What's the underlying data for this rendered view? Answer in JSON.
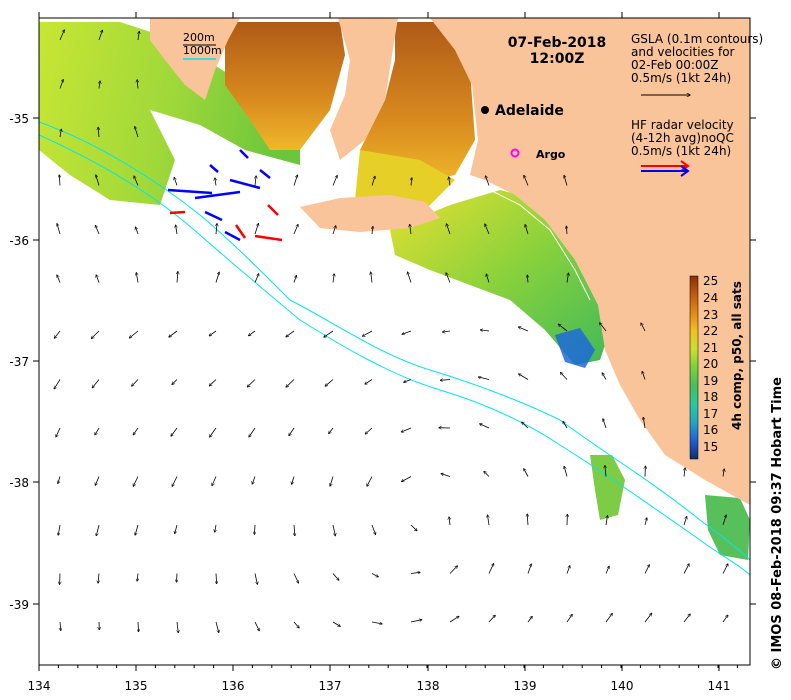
{
  "title": {
    "date": "07-Feb-2018",
    "time": "12:00Z"
  },
  "isobath_legend": {
    "line1": "200m",
    "line2": "1000m"
  },
  "gsla_legend": {
    "line1": "GSLA (0.1m contours)",
    "line2": "and velocities for",
    "line3": "02-Feb 00:00Z",
    "line4": "0.5m/s (1kt 24h)"
  },
  "hf_legend": {
    "line1": "HF radar velocity",
    "line2": "(4-12h avg)noQC",
    "line3": "0.5m/s (1kt 24h)"
  },
  "places": {
    "adelaide": "Adelaide",
    "argo": "Argo"
  },
  "colorbar": {
    "title": "4h comp, p50, all sats",
    "ticks": [
      "25",
      "24",
      "23",
      "22",
      "21",
      "20",
      "19",
      "18",
      "17",
      "16",
      "15"
    ],
    "stops": [
      "#08306b",
      "#1f5fd8",
      "#22a6c8",
      "#28c8a0",
      "#44c060",
      "#7ad23a",
      "#c8e030",
      "#f0c020",
      "#e08818",
      "#c05a10",
      "#8a3008"
    ]
  },
  "x_ticks": [
    "134",
    "135",
    "136",
    "137",
    "138",
    "139",
    "140",
    "141"
  ],
  "y_ticks": [
    "-35",
    "-36",
    "-37",
    "-38",
    "-39"
  ],
  "credit": "© IMOS 08-Feb-2018 09:37 Hobart Time",
  "colors": {
    "land": "#f9c49a",
    "isobath": "#00e5ee",
    "gsla_arrow": "#000000",
    "hf_red": "#ff0000",
    "hf_blue": "#0000ff",
    "argo": "#ff00ff"
  }
}
